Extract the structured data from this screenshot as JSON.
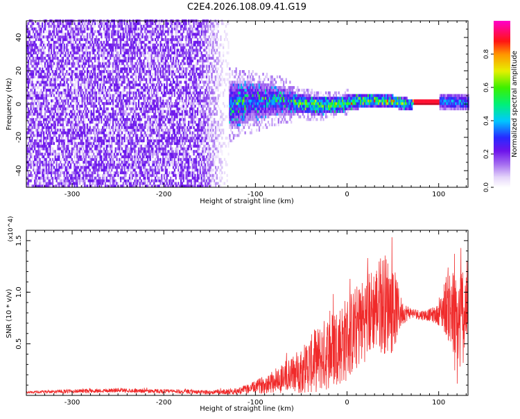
{
  "title": "C2E4.2026.108.09.41.G19",
  "colors": {
    "snr_line": "#f02a2a",
    "axis": "#000000",
    "background": "#ffffff"
  },
  "chart_data": [
    {
      "type": "heatmap",
      "name": "spectrogram",
      "xlabel": "Height of straight line (km)",
      "ylabel": "Frequency (Hz)",
      "xlim": [
        -350,
        132
      ],
      "ylim": [
        -50,
        50
      ],
      "x_ticks": [
        -300,
        -200,
        -100,
        0,
        100
      ],
      "y_ticks": [
        -40,
        -20,
        0,
        20,
        40
      ],
      "colorbar": {
        "label": "Normalized spectral amplitude",
        "range": [
          0,
          1
        ],
        "ticks": [
          0.0,
          0.2,
          0.4,
          0.6,
          0.8
        ],
        "colormap": "rainbow (white-lavender-violet-blue-cyan-green-yellow-orange-red-magenta)"
      },
      "regions": [
        {
          "x_range": [
            -350,
            -130
          ],
          "freq_range": [
            -50,
            50
          ],
          "amplitude": "0.05-0.25 (broadband noise)"
        },
        {
          "x_range": [
            -130,
            -60
          ],
          "freq_range": [
            -15,
            12
          ],
          "amplitude": "0.2-0.5"
        },
        {
          "x_range": [
            -60,
            70
          ],
          "freq_range": [
            -5,
            5
          ],
          "amplitude": "0.3-0.8"
        },
        {
          "x_range": [
            72,
            100
          ],
          "freq_range": [
            -1,
            1
          ],
          "amplitude": "0.85-0.95"
        },
        {
          "x_range": [
            100,
            132
          ],
          "freq_range": [
            -4,
            4
          ],
          "amplitude": "0.2-0.5"
        }
      ]
    },
    {
      "type": "line",
      "name": "snr",
      "xlabel": "Height of straight line (km)",
      "ylabel": "SNR (10 * v/v)",
      "y_multiplier": "(x10^4)",
      "xlim": [
        -350,
        132
      ],
      "ylim": [
        0,
        1.6
      ],
      "x_ticks": [
        -300,
        -200,
        -100,
        0,
        100
      ],
      "y_ticks": [
        0.5,
        1.0,
        1.5
      ],
      "x": [
        -350,
        -300,
        -250,
        -200,
        -150,
        -120,
        -100,
        -80,
        -60,
        -40,
        -20,
        0,
        10,
        20,
        30,
        40,
        50,
        60,
        70,
        80,
        90,
        100,
        110,
        115,
        120,
        125,
        132
      ],
      "values": [
        0.03,
        0.04,
        0.05,
        0.04,
        0.03,
        0.04,
        0.08,
        0.14,
        0.2,
        0.3,
        0.42,
        0.55,
        0.65,
        0.75,
        0.85,
        0.9,
        0.85,
        0.8,
        0.8,
        0.78,
        0.78,
        0.78,
        0.9,
        0.75,
        0.6,
        0.78,
        0.9
      ],
      "amplitude": [
        0.01,
        0.02,
        0.02,
        0.02,
        0.02,
        0.03,
        0.06,
        0.12,
        0.18,
        0.28,
        0.38,
        0.42,
        0.42,
        0.42,
        0.42,
        0.5,
        0.45,
        0.12,
        0.05,
        0.05,
        0.06,
        0.1,
        0.35,
        0.5,
        0.55,
        0.55,
        0.4
      ]
    }
  ]
}
